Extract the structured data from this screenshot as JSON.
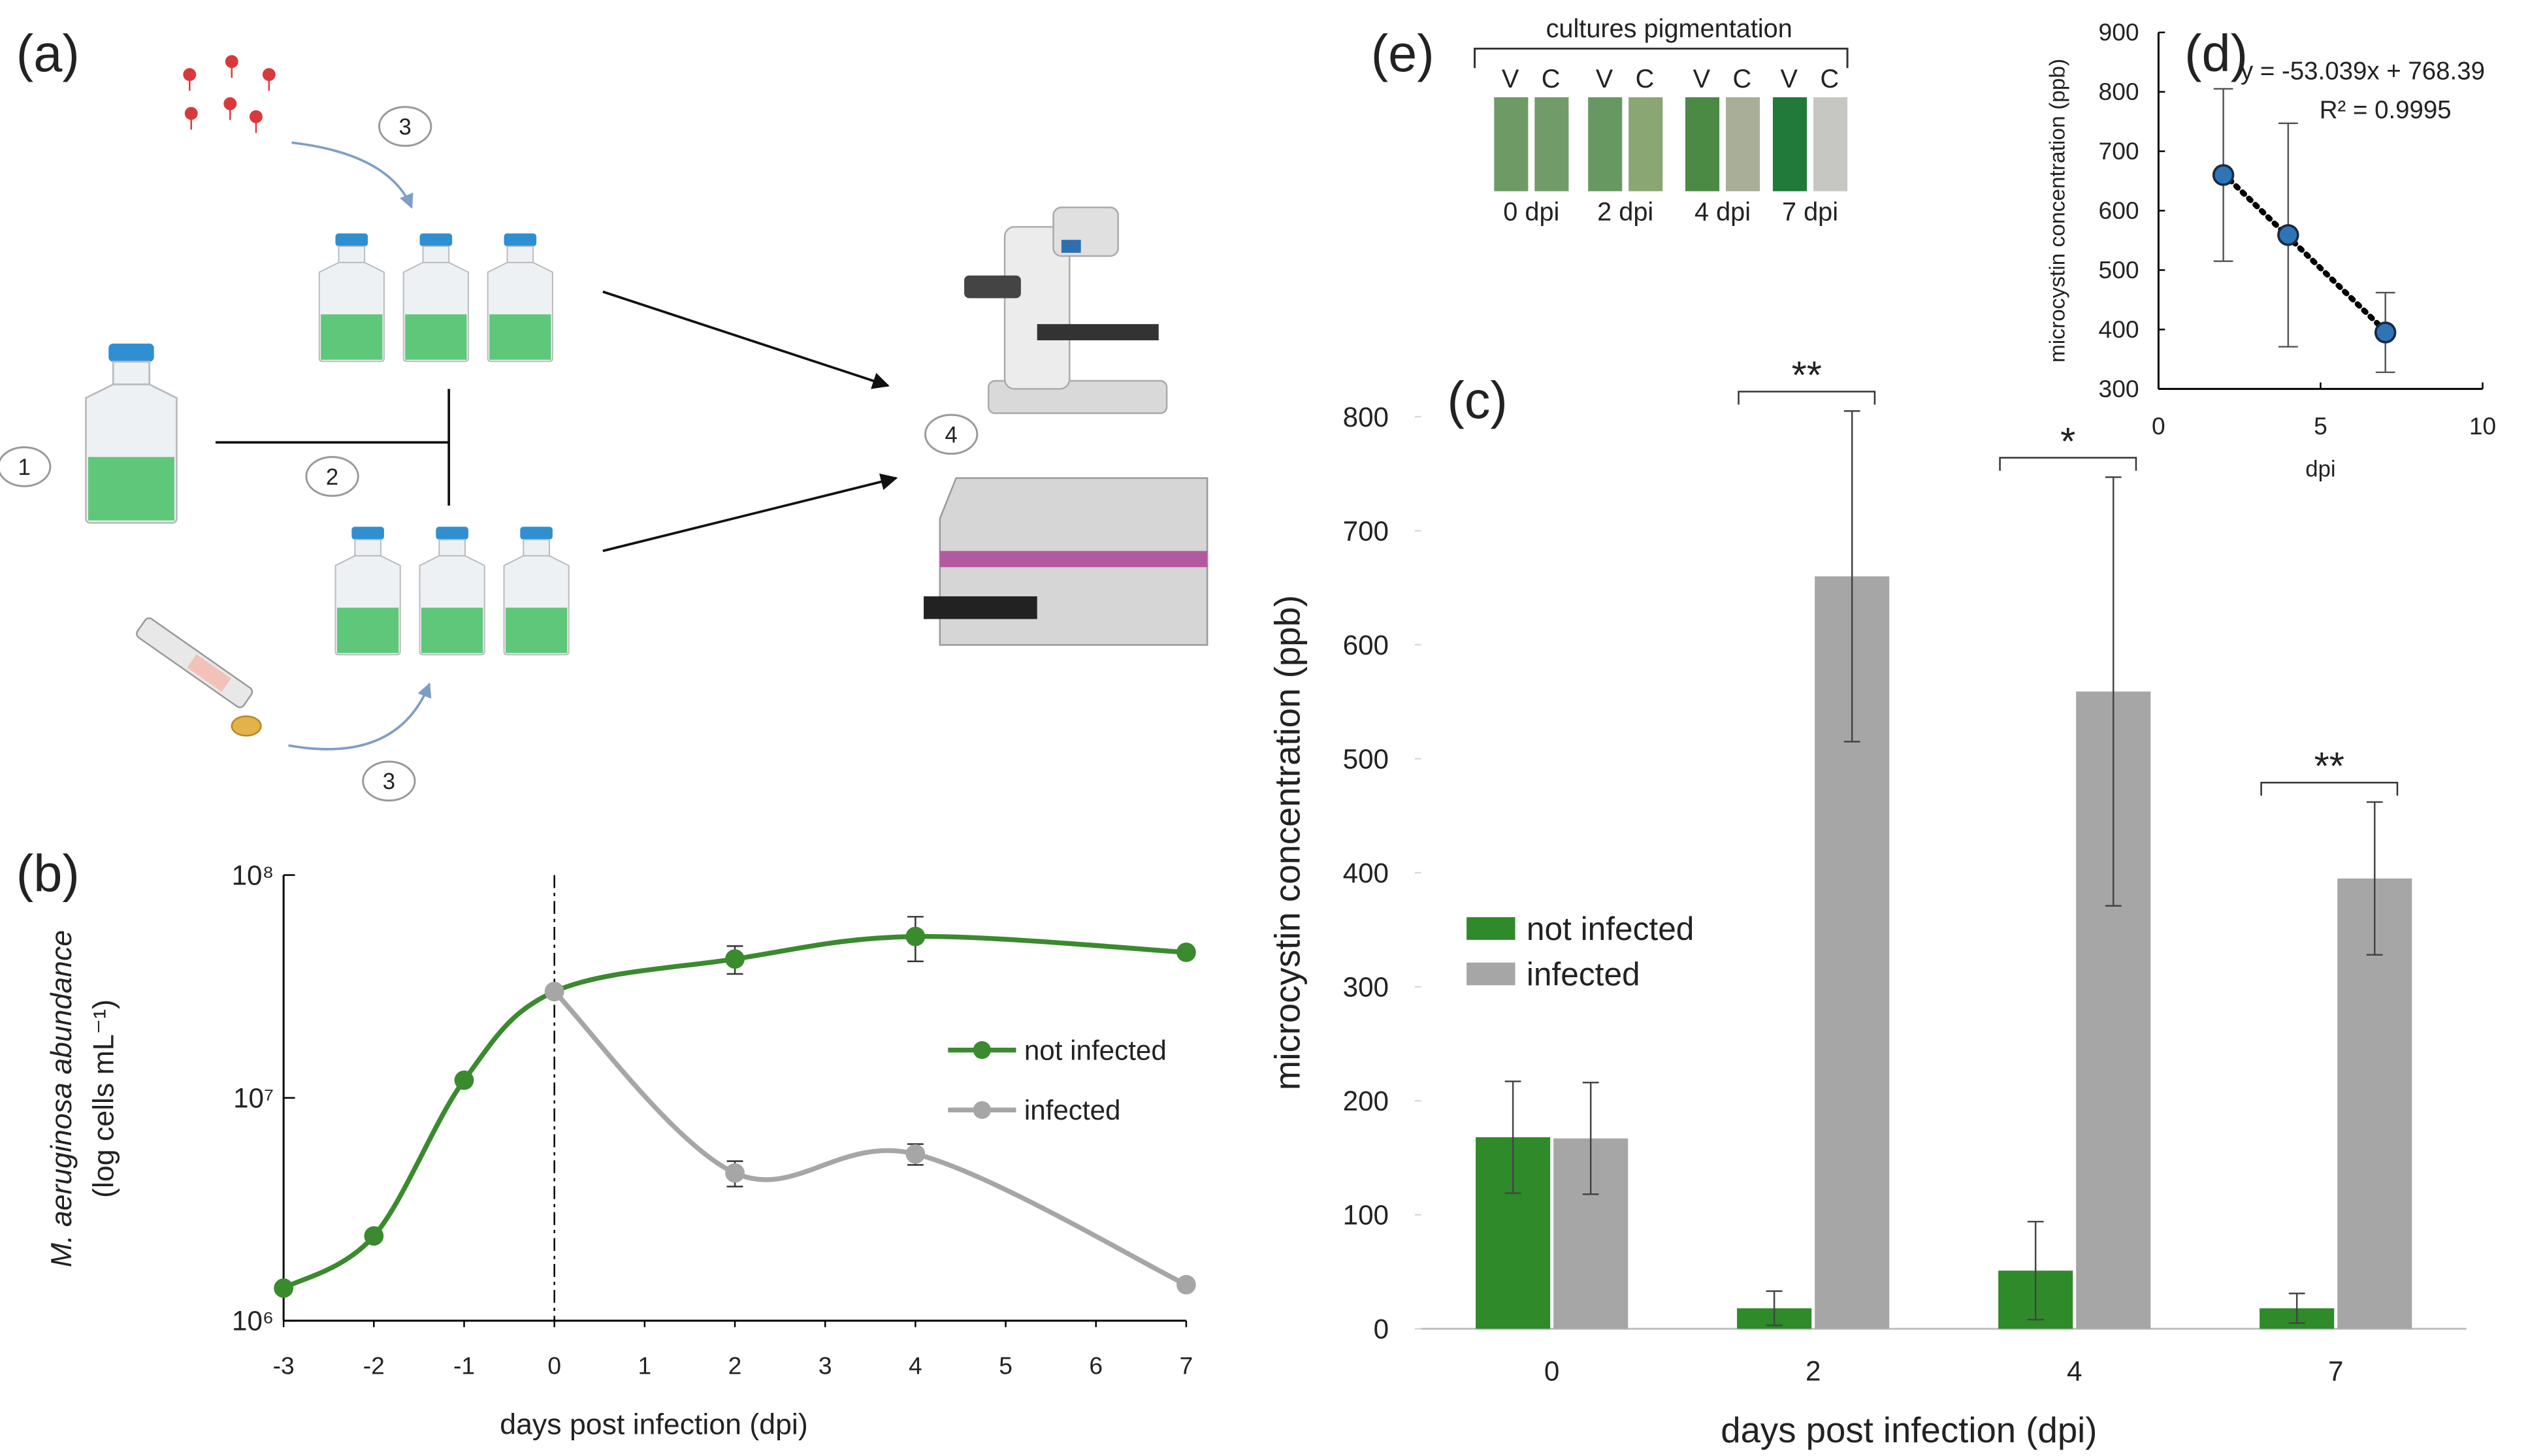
{
  "panels": {
    "a": "(a)",
    "b": "(b)",
    "c": "(c)",
    "d": "(d)",
    "e": "(e)"
  },
  "diagram": {
    "steps": [
      "1",
      "2",
      "3",
      "3",
      "4"
    ]
  },
  "pigmentation": {
    "title": "cultures pigmentation",
    "groups": [
      {
        "day": "0 dpi",
        "labels": [
          "V",
          "C"
        ],
        "colors": [
          "#6e9a66",
          "#719c69"
        ]
      },
      {
        "day": "2 dpi",
        "labels": [
          "V",
          "C"
        ],
        "colors": [
          "#679862",
          "#8aa673"
        ]
      },
      {
        "day": "4 dpi",
        "labels": [
          "V",
          "C"
        ],
        "colors": [
          "#4b8a45",
          "#a9ae99"
        ]
      },
      {
        "day": "7 dpi",
        "labels": [
          "V",
          "C"
        ],
        "colors": [
          "#21793a",
          "#c6c6c2"
        ]
      }
    ]
  },
  "chart_data": [
    {
      "type": "line",
      "x_label": "days post infection (dpi)",
      "y_label": [
        "M. aeruginosa abundance",
        "(log cells mL⁻¹)"
      ],
      "log_y": true,
      "xlim": [
        -3,
        7
      ],
      "xticks": [
        -3,
        -2,
        -1,
        0,
        1,
        2,
        3,
        4,
        5,
        6,
        7
      ],
      "ylim": [
        1000000,
        100000000
      ],
      "yticks": [
        {
          "value": 1000000,
          "label": "10⁶"
        },
        {
          "value": 10000000,
          "label": "10⁷"
        },
        {
          "value": 100000000,
          "label": "10⁸"
        }
      ],
      "vline": 0,
      "legend": "right",
      "series": [
        {
          "name": "not infected",
          "color": "#3a8a2e",
          "x": [
            -3,
            -2,
            -1,
            0,
            2,
            4,
            7
          ],
          "values": [
            1400000,
            2400000,
            12000000,
            30000000,
            42000000,
            53000000,
            45000000
          ],
          "errors": [
            null,
            null,
            null,
            null,
            6000000,
            12000000,
            null
          ]
        },
        {
          "name": "infected",
          "color": "#a6a6a6",
          "x": [
            0,
            2,
            4,
            7
          ],
          "values": [
            30000000,
            4600000,
            5600000,
            1450000
          ],
          "errors": [
            null,
            600000,
            600000,
            null
          ]
        }
      ]
    },
    {
      "type": "bar",
      "x_label": "days post infection (dpi)",
      "y_label": "microcystin concentration (ppb)",
      "categories": [
        "0",
        "2",
        "4",
        "7"
      ],
      "ylim": [
        0,
        850
      ],
      "yticks": [
        0,
        100,
        200,
        300,
        400,
        500,
        600,
        700,
        800
      ],
      "legend": "left",
      "significance": [
        null,
        "**",
        "*",
        "**"
      ],
      "series": [
        {
          "name": "not infected",
          "color": "#2f8a2a",
          "values": [
            168,
            18,
            51,
            18
          ],
          "errors": [
            49,
            15,
            43,
            13
          ]
        },
        {
          "name": "infected",
          "color": "#a6a6a6",
          "values": [
            167,
            660,
            559,
            395
          ],
          "errors": [
            49,
            145,
            188,
            67
          ]
        }
      ]
    },
    {
      "type": "scatter",
      "x_label": "dpi",
      "y_label": "microcystin concentration (ppb)",
      "xlim": [
        0,
        10
      ],
      "xticks": [
        0,
        5,
        10
      ],
      "ylim": [
        300,
        900
      ],
      "yticks": [
        300,
        400,
        500,
        600,
        700,
        800,
        900
      ],
      "x": [
        2,
        4,
        7
      ],
      "values": [
        660,
        559,
        395
      ],
      "errors": [
        145,
        188,
        67
      ],
      "color": "#2e75b6",
      "trendline": {
        "slope": -53.039,
        "intercept": 768.39,
        "equation": "y = -53.039x + 768.39",
        "r2": "R² = 0.9995"
      }
    }
  ]
}
